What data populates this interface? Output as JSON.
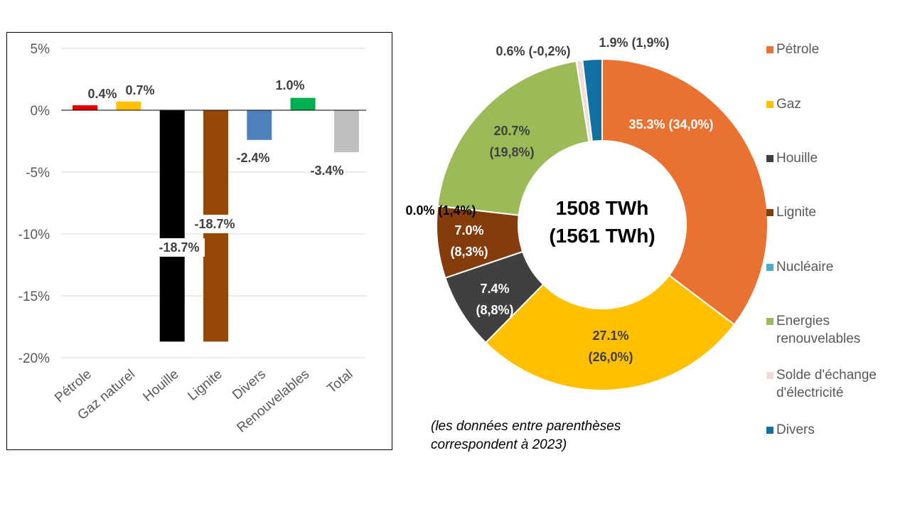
{
  "chart_data": [
    {
      "type": "bar",
      "categories": [
        "Pétrole",
        "Gaz naturel",
        "Houille",
        "Lignite",
        "Divers",
        "Renouvelables",
        "Total"
      ],
      "values": [
        0.4,
        0.7,
        -18.7,
        -18.7,
        -2.4,
        1.0,
        -3.4
      ],
      "data_labels": [
        "0.4%",
        "0.7%",
        "-18.7%",
        "-18.7%",
        "-2.4%",
        "1.0%",
        "-3.4%"
      ],
      "colors": [
        "#e60000",
        "#ffc000",
        "#000000",
        "#974706",
        "#4f81bd",
        "#00b050",
        "#bfbfbf"
      ],
      "ylim": [
        -20,
        5
      ],
      "yticks": [
        "5%",
        "0%",
        "-5%",
        "-10%",
        "-15%",
        "-20%"
      ],
      "ytick_values": [
        5,
        0,
        -5,
        -10,
        -15,
        -20
      ],
      "grid": true
    },
    {
      "type": "pie",
      "donut": true,
      "center_label": [
        "1508 TWh",
        "(1561 TWh)"
      ],
      "categories": [
        "Pétrole",
        "Gaz",
        "Houille",
        "Lignite",
        "Nucléaire",
        "Energies renouvelables",
        "Solde d'échange d'électricité",
        "Divers"
      ],
      "values": [
        35.3,
        27.1,
        7.4,
        7.0,
        0.0,
        20.7,
        0.6,
        1.9
      ],
      "values_2023": [
        34.0,
        26.0,
        8.8,
        8.3,
        1.4,
        19.8,
        -0.2,
        1.9
      ],
      "data_labels": [
        [
          "35.3% (34,0%)"
        ],
        [
          "27.1%",
          "(26,0%)"
        ],
        [
          "7.4%",
          "(8,8%)"
        ],
        [
          "7.0%",
          "(8,3%)"
        ],
        [
          "0.0% (1,4%)"
        ],
        [
          "20.7%",
          "(19,8%)"
        ],
        [
          "0.6% (-0,2%)"
        ],
        [
          "1.9% (1,9%)"
        ]
      ],
      "colors": [
        "#e97132",
        "#ffc000",
        "#404040",
        "#843c0c",
        "#4bacc6",
        "#9bbb59",
        "#f2dcdb",
        "#1170a0"
      ],
      "legend": [
        "Pétrole",
        "Gaz",
        "Houille",
        "Lignite",
        "Nucléaire",
        "Energies renouvelables",
        "Solde d'échange d'électricité",
        "Divers"
      ],
      "legend_lines": [
        [
          "Pétrole"
        ],
        [
          "Gaz"
        ],
        [
          "Houille"
        ],
        [
          "Lignite"
        ],
        [
          "Nucléaire"
        ],
        [
          "Energies",
          "renouvelables"
        ],
        [
          "Solde d'échange",
          "d'électricité"
        ],
        [
          "Divers"
        ]
      ],
      "legend_placement": "right"
    }
  ],
  "note": [
    "(les données entre parenthèses",
    "correspond à 2023)"
  ]
}
